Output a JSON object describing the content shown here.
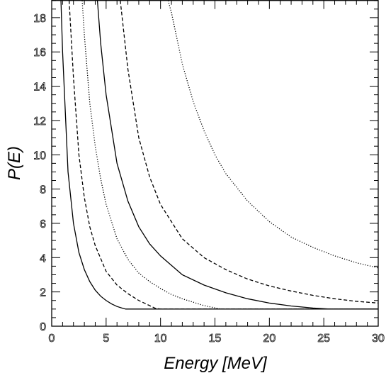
{
  "chart_data": {
    "type": "line",
    "title": "",
    "xlabel": "Energy [MeV]",
    "ylabel": "P(E)",
    "xlim": [
      0,
      30
    ],
    "ylim": [
      0,
      19
    ],
    "x_ticks": [
      0,
      5,
      10,
      15,
      20,
      25,
      30
    ],
    "y_ticks": [
      0,
      2,
      4,
      6,
      8,
      10,
      12,
      14,
      16,
      18
    ],
    "grid": false,
    "legend": "none",
    "series": [
      {
        "line_style": "solid",
        "x": [
          0.85,
          1.0,
          1.5,
          2.0,
          2.5,
          3.0,
          3.5,
          4.0,
          4.5,
          5.0,
          5.5,
          6.0,
          6.5,
          6.8,
          7,
          10,
          15,
          20,
          25,
          30
        ],
        "y": [
          19.0,
          16.0,
          9.0,
          6.0,
          4.3,
          3.3,
          2.6,
          2.1,
          1.75,
          1.5,
          1.3,
          1.15,
          1.05,
          1.0,
          1.0,
          1.0,
          1.0,
          1.0,
          1.0,
          1.0
        ]
      },
      {
        "line_style": "dashed",
        "x": [
          1.6,
          2.0,
          2.5,
          3.0,
          3.5,
          4.0,
          5.0,
          6.0,
          7.0,
          8.0,
          9.0,
          9.5,
          10,
          15,
          20,
          25,
          30
        ],
        "y": [
          19.0,
          14.5,
          10.0,
          7.5,
          5.8,
          4.7,
          3.2,
          2.4,
          1.9,
          1.5,
          1.2,
          1.05,
          1.0,
          1.0,
          1.0,
          1.0,
          1.0
        ]
      },
      {
        "line_style": "dotted",
        "x": [
          2.8,
          3.0,
          3.5,
          4.0,
          4.5,
          5.0,
          6.0,
          7.0,
          8.0,
          9.0,
          10.0,
          11.0,
          12.0,
          13.0,
          14.0,
          15.0,
          15.5,
          20,
          25,
          30
        ],
        "y": [
          19.0,
          17.0,
          13.0,
          10.5,
          8.6,
          7.1,
          5.1,
          3.9,
          3.1,
          2.6,
          2.2,
          1.85,
          1.6,
          1.4,
          1.2,
          1.07,
          1.0,
          1.0,
          1.0,
          1.0
        ]
      },
      {
        "line_style": "solid",
        "x": [
          4.2,
          4.5,
          5.0,
          6.0,
          7.0,
          8.0,
          9.0,
          10.0,
          12.0,
          14.0,
          16.0,
          18.0,
          20.0,
          22.0,
          24.0,
          25.5,
          26,
          28,
          30
        ],
        "y": [
          19.0,
          16.5,
          13.5,
          9.5,
          7.3,
          5.8,
          4.8,
          4.1,
          3.0,
          2.4,
          1.95,
          1.6,
          1.35,
          1.18,
          1.06,
          1.0,
          1.0,
          1.0,
          1.0
        ]
      },
      {
        "line_style": "dashed",
        "x": [
          6.3,
          7.0,
          8.0,
          9.0,
          10.0,
          12.0,
          14.0,
          16.0,
          18.0,
          20.0,
          22.0,
          24.0,
          26.0,
          28.0,
          30.0
        ],
        "y": [
          19.0,
          15.0,
          11.0,
          8.7,
          7.1,
          5.1,
          4.0,
          3.3,
          2.75,
          2.35,
          2.05,
          1.8,
          1.6,
          1.45,
          1.35
        ]
      },
      {
        "line_style": "dotted",
        "x": [
          10.7,
          11.0,
          12.0,
          13.0,
          14.0,
          15.0,
          16.0,
          18.0,
          20.0,
          22.0,
          24.0,
          26.0,
          28.0,
          30.0
        ],
        "y": [
          19.0,
          18.3,
          15.3,
          13.1,
          11.4,
          10.0,
          8.9,
          7.3,
          6.1,
          5.2,
          4.6,
          4.1,
          3.7,
          3.4
        ]
      }
    ]
  }
}
